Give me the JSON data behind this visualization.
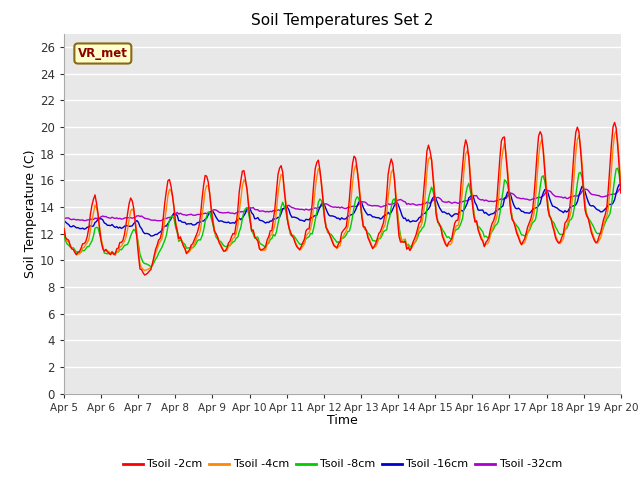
{
  "title": "Soil Temperatures Set 2",
  "xlabel": "Time",
  "ylabel": "Soil Temperature (C)",
  "ylim": [
    0,
    27
  ],
  "yticks": [
    0,
    2,
    4,
    6,
    8,
    10,
    12,
    14,
    16,
    18,
    20,
    22,
    24,
    26
  ],
  "fig_bg_color": "#ffffff",
  "plot_bg_color": "#e8e8e8",
  "grid_color": "#ffffff",
  "series_colors": [
    "#ff0000",
    "#ff8800",
    "#00cc00",
    "#0000cc",
    "#aa00cc"
  ],
  "series_labels": [
    "Tsoil -2cm",
    "Tsoil -4cm",
    "Tsoil -8cm",
    "Tsoil -16cm",
    "Tsoil -32cm"
  ],
  "annotation_text": "VR_met",
  "xtick_labels": [
    "Apr 5",
    "Apr 6",
    "Apr 7",
    "Apr 8",
    "Apr 9",
    "Apr 10",
    "Apr 11",
    "Apr 12",
    "Apr 13",
    "Apr 14",
    "Apr 15",
    "Apr 16",
    "Apr 17",
    "Apr 18",
    "Apr 19",
    "Apr 20"
  ],
  "lw": 1.0
}
